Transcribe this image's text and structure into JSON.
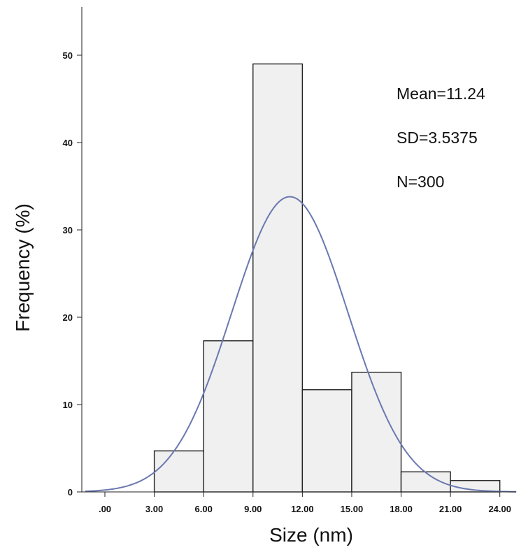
{
  "chart_data": {
    "type": "bar",
    "title": "",
    "xlabel": "Size (nm)",
    "ylabel": "Frequency (%)",
    "x_tick_labels": [
      ".00",
      "3.00",
      "6.00",
      "9.00",
      "12.00",
      "15.00",
      "18.00",
      "21.00",
      "24.00"
    ],
    "y_tick_labels": [
      "0",
      "10",
      "20",
      "30",
      "40",
      "50"
    ],
    "xlim": [
      -1.2,
      25
    ],
    "ylim": [
      0,
      55
    ],
    "bins": [
      {
        "from": 3,
        "to": 6,
        "value": 4.7
      },
      {
        "from": 6,
        "to": 9,
        "value": 17.3
      },
      {
        "from": 9,
        "to": 12,
        "value": 49.0
      },
      {
        "from": 12,
        "to": 15,
        "value": 11.7
      },
      {
        "from": 15,
        "to": 18,
        "value": 13.7
      },
      {
        "from": 18,
        "to": 21,
        "value": 2.3
      },
      {
        "from": 21,
        "to": 24,
        "value": 1.3
      }
    ],
    "normal_curve": {
      "mean": 11.24,
      "sd": 3.5375,
      "peak": 33.8
    },
    "annotations": [
      "Mean=11.24",
      "SD=3.5375",
      "N=300"
    ],
    "grid": false,
    "bar_fill": "#f0f0f0",
    "bar_edge": "#222222",
    "curve_color": "#6a78b0"
  }
}
